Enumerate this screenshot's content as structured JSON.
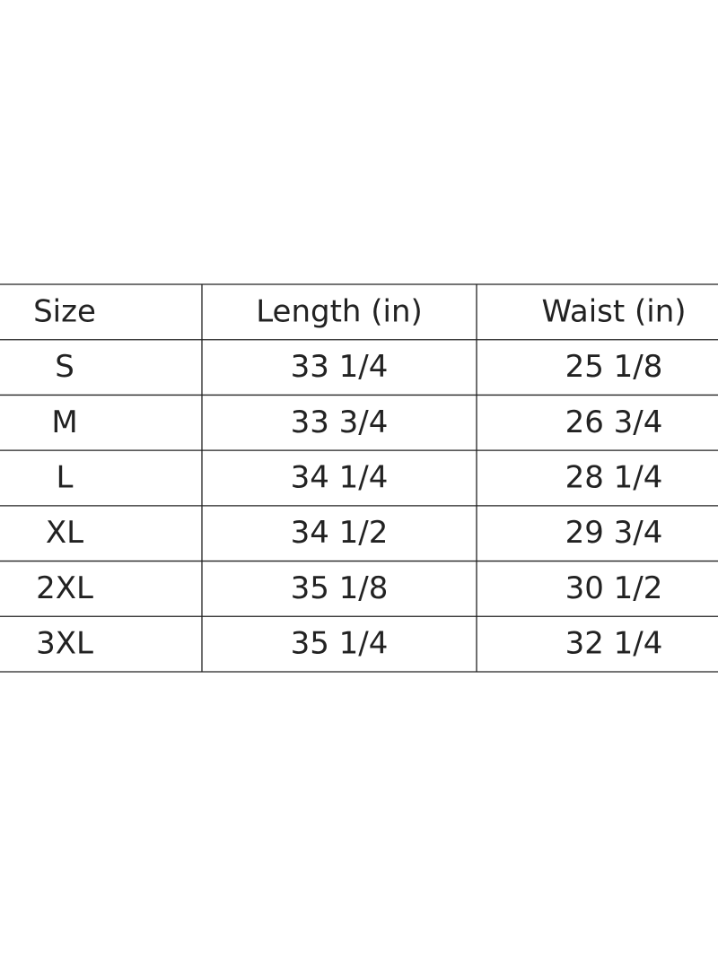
{
  "table": {
    "header": [
      "Size",
      "Length (in)",
      "Waist (in)"
    ],
    "rows": [
      [
        "S",
        "33 1/4",
        "25 1/8"
      ],
      [
        "M",
        "33 3/4",
        "26 3/4"
      ],
      [
        "L",
        "34 1/4",
        "28 1/4"
      ],
      [
        "XL",
        "34 1/2",
        "29 3/4"
      ],
      [
        "2XL",
        "35 1/8",
        "30 1/2"
      ],
      [
        "3XL",
        "35 1/4",
        "32 1/4"
      ]
    ]
  }
}
